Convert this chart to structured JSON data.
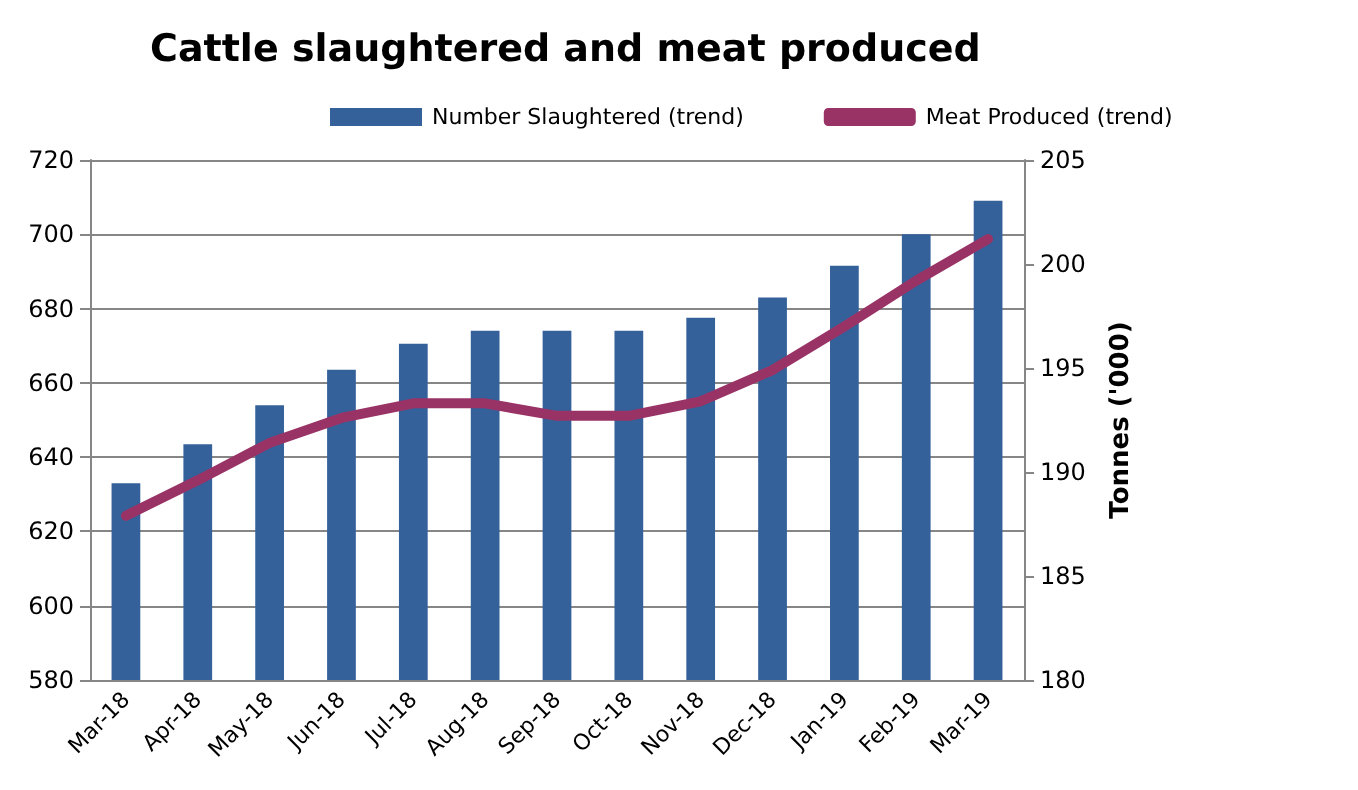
{
  "chart_data": {
    "type": "bar",
    "title": "Cattle slaughtered and meat produced",
    "y2label": "Tonnes ('000)",
    "categories": [
      "Mar-18",
      "Apr-18",
      "May-18",
      "Jun-18",
      "Jul-18",
      "Aug-18",
      "Sep-18",
      "Oct-18",
      "Nov-18",
      "Dec-18",
      "Jan-19",
      "Feb-19",
      "Mar-19"
    ],
    "series": [
      {
        "name": "Number Slaughtered (trend)",
        "color": "#35619b",
        "values": [
          633,
          643.5,
          654,
          663.5,
          670.5,
          674,
          674,
          674,
          677.5,
          683,
          691.5,
          700,
          709
        ]
      },
      {
        "name": "Meat Produced (trend)",
        "type": "line",
        "axis": "y2",
        "color": "#993366",
        "values": [
          187.9,
          189.6,
          191.4,
          192.6,
          193.3,
          193.3,
          192.7,
          192.7,
          193.4,
          194.9,
          197,
          199.2,
          201.2
        ]
      }
    ],
    "ylim": [
      580,
      720
    ],
    "yticks": [
      580,
      600,
      620,
      640,
      660,
      680,
      700,
      720
    ],
    "y2lim": [
      180,
      205
    ],
    "y2ticks": [
      180,
      185,
      190,
      195,
      200,
      205
    ],
    "grid": "y",
    "legend": "top",
    "marker": "none",
    "line_style": "solid"
  }
}
